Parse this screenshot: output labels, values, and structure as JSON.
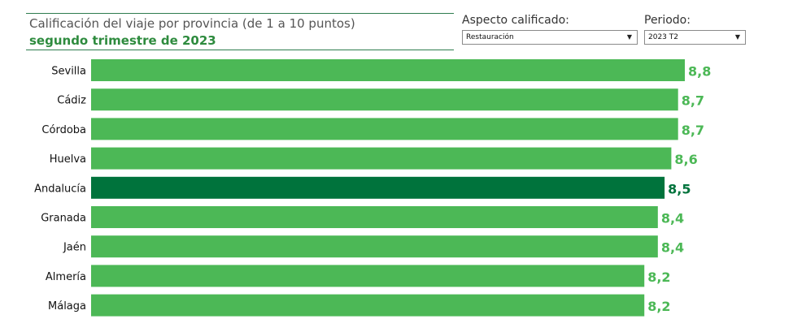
{
  "header": {
    "title": "Calificación del viaje por provincia (de 1 a 10 puntos)",
    "subtitle": "segundo trimestre de 2023"
  },
  "filters": {
    "aspect": {
      "label": "Aspecto calificado:",
      "value": "Restauración",
      "icon": "chevron-down-icon"
    },
    "period": {
      "label": "Periodo:",
      "value": "2023 T2",
      "icon": "chevron-down-icon"
    }
  },
  "colors": {
    "bar": "#4cb856",
    "bar_highlight": "#00733c",
    "value_label": "#4cb856",
    "value_label_highlight": "#00733c"
  },
  "chart_data": {
    "type": "bar",
    "orientation": "horizontal",
    "categories": [
      "Sevilla",
      "Cádiz",
      "Córdoba",
      "Huelva",
      "Andalucía",
      "Granada",
      "Jaén",
      "Almería",
      "Málaga"
    ],
    "values": [
      8.8,
      8.7,
      8.7,
      8.6,
      8.5,
      8.4,
      8.4,
      8.2,
      8.2
    ],
    "value_labels": [
      "8,8",
      "8,7",
      "8,7",
      "8,6",
      "8,5",
      "8,4",
      "8,4",
      "8,2",
      "8,2"
    ],
    "highlight": "Andalucía",
    "xlim": [
      0,
      8.8
    ],
    "grid": false,
    "legend": "none"
  }
}
